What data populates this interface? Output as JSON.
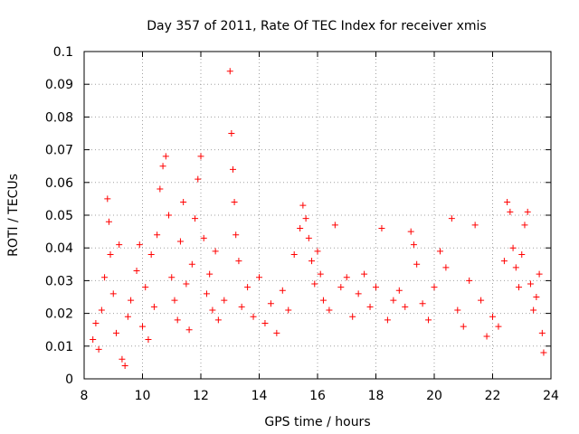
{
  "chart_data": {
    "type": "scatter",
    "title": "Day 357 of 2011, Rate Of TEC Index for receiver xmis",
    "xlabel": "GPS time / hours",
    "ylabel": "ROTI / TECUs",
    "xlim": [
      8,
      24
    ],
    "ylim": [
      0,
      0.1
    ],
    "xticks": [
      "8",
      "10",
      "12",
      "14",
      "16",
      "18",
      "20",
      "22",
      "24"
    ],
    "yticks": [
      "0",
      "0.01",
      "0.02",
      "0.03",
      "0.04",
      "0.05",
      "0.06",
      "0.07",
      "0.08",
      "0.09",
      "0.1"
    ],
    "grid": true,
    "marker": "plus",
    "color": "#ff0000",
    "series": [
      {
        "points": [
          [
            8.3,
            0.012
          ],
          [
            8.4,
            0.017
          ],
          [
            8.5,
            0.009
          ],
          [
            8.6,
            0.021
          ],
          [
            8.7,
            0.031
          ],
          [
            8.8,
            0.055
          ],
          [
            8.85,
            0.048
          ],
          [
            8.9,
            0.038
          ],
          [
            9.0,
            0.026
          ],
          [
            9.1,
            0.014
          ],
          [
            9.2,
            0.041
          ],
          [
            9.3,
            0.006
          ],
          [
            9.4,
            0.004
          ],
          [
            9.5,
            0.019
          ],
          [
            9.6,
            0.024
          ],
          [
            9.8,
            0.033
          ],
          [
            9.9,
            0.041
          ],
          [
            10.0,
            0.016
          ],
          [
            10.1,
            0.028
          ],
          [
            10.2,
            0.012
          ],
          [
            10.3,
            0.038
          ],
          [
            10.4,
            0.022
          ],
          [
            10.5,
            0.044
          ],
          [
            10.6,
            0.058
          ],
          [
            10.7,
            0.065
          ],
          [
            10.8,
            0.068
          ],
          [
            10.9,
            0.05
          ],
          [
            11.0,
            0.031
          ],
          [
            11.1,
            0.024
          ],
          [
            11.2,
            0.018
          ],
          [
            11.3,
            0.042
          ],
          [
            11.4,
            0.054
          ],
          [
            11.5,
            0.029
          ],
          [
            11.6,
            0.015
          ],
          [
            11.7,
            0.035
          ],
          [
            11.8,
            0.049
          ],
          [
            11.9,
            0.061
          ],
          [
            12.0,
            0.068
          ],
          [
            12.1,
            0.043
          ],
          [
            12.2,
            0.026
          ],
          [
            12.3,
            0.032
          ],
          [
            12.4,
            0.021
          ],
          [
            12.5,
            0.039
          ],
          [
            12.6,
            0.018
          ],
          [
            12.8,
            0.024
          ],
          [
            13.0,
            0.094
          ],
          [
            13.05,
            0.075
          ],
          [
            13.1,
            0.064
          ],
          [
            13.15,
            0.054
          ],
          [
            13.2,
            0.044
          ],
          [
            13.3,
            0.036
          ],
          [
            13.4,
            0.022
          ],
          [
            13.6,
            0.028
          ],
          [
            13.8,
            0.019
          ],
          [
            14.0,
            0.031
          ],
          [
            14.2,
            0.017
          ],
          [
            14.4,
            0.023
          ],
          [
            14.6,
            0.014
          ],
          [
            14.8,
            0.027
          ],
          [
            15.0,
            0.021
          ],
          [
            15.2,
            0.038
          ],
          [
            15.4,
            0.046
          ],
          [
            15.5,
            0.053
          ],
          [
            15.6,
            0.049
          ],
          [
            15.7,
            0.043
          ],
          [
            15.8,
            0.036
          ],
          [
            15.9,
            0.029
          ],
          [
            16.0,
            0.039
          ],
          [
            16.1,
            0.032
          ],
          [
            16.2,
            0.024
          ],
          [
            16.4,
            0.021
          ],
          [
            16.6,
            0.047
          ],
          [
            16.8,
            0.028
          ],
          [
            17.0,
            0.031
          ],
          [
            17.2,
            0.019
          ],
          [
            17.4,
            0.026
          ],
          [
            17.6,
            0.032
          ],
          [
            17.8,
            0.022
          ],
          [
            18.0,
            0.028
          ],
          [
            18.2,
            0.046
          ],
          [
            18.4,
            0.018
          ],
          [
            18.6,
            0.024
          ],
          [
            18.8,
            0.027
          ],
          [
            19.0,
            0.022
          ],
          [
            19.2,
            0.045
          ],
          [
            19.3,
            0.041
          ],
          [
            19.4,
            0.035
          ],
          [
            19.6,
            0.023
          ],
          [
            19.8,
            0.018
          ],
          [
            20.0,
            0.028
          ],
          [
            20.2,
            0.039
          ],
          [
            20.4,
            0.034
          ],
          [
            20.6,
            0.049
          ],
          [
            20.8,
            0.021
          ],
          [
            21.0,
            0.016
          ],
          [
            21.2,
            0.03
          ],
          [
            21.4,
            0.047
          ],
          [
            21.6,
            0.024
          ],
          [
            21.8,
            0.013
          ],
          [
            22.0,
            0.019
          ],
          [
            22.2,
            0.016
          ],
          [
            22.4,
            0.036
          ],
          [
            22.5,
            0.054
          ],
          [
            22.6,
            0.051
          ],
          [
            22.7,
            0.04
          ],
          [
            22.8,
            0.034
          ],
          [
            22.9,
            0.028
          ],
          [
            23.0,
            0.038
          ],
          [
            23.1,
            0.047
          ],
          [
            23.2,
            0.051
          ],
          [
            23.3,
            0.029
          ],
          [
            23.4,
            0.021
          ],
          [
            23.5,
            0.025
          ],
          [
            23.6,
            0.032
          ],
          [
            23.7,
            0.014
          ],
          [
            23.75,
            0.008
          ]
        ]
      }
    ]
  }
}
